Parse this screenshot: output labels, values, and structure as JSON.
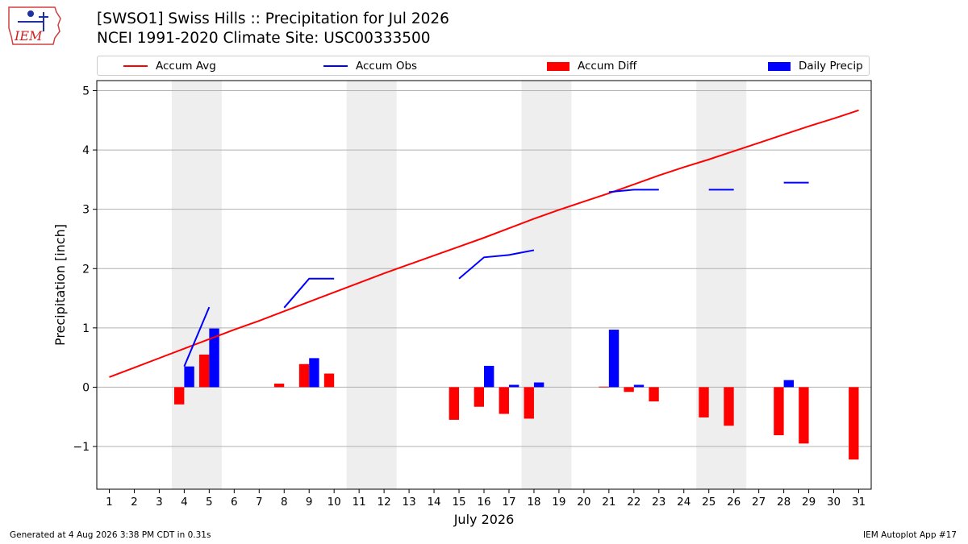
{
  "logo_text": "IEM",
  "title_line1": "[SWSO1] Swiss Hills :: Precipitation for Jul 2026",
  "title_line2": "NCEI 1991-2020 Climate Site: USC00333500",
  "footer_left": "Generated at 4 Aug 2026 3:38 PM CDT in 0.31s",
  "footer_right": "IEM Autoplot App #17",
  "legend": [
    {
      "label": "Accum Avg",
      "kind": "line",
      "color": "#ff0000"
    },
    {
      "label": "Accum Obs",
      "kind": "line",
      "color": "#0000ff"
    },
    {
      "label": "Accum Diff",
      "kind": "box",
      "color": "#ff0000"
    },
    {
      "label": "Daily Precip",
      "kind": "box",
      "color": "#0000ff"
    }
  ],
  "chart_data": {
    "type": "bar",
    "xlabel": "July 2026",
    "ylabel": "Precipitation [inch]",
    "xlim": [
      0.5,
      31.5
    ],
    "ylim": [
      -1.72,
      5.17
    ],
    "yticks": [
      -1,
      0,
      1,
      2,
      3,
      4,
      5
    ],
    "ytick_labels": [
      "−1",
      "0",
      "1",
      "2",
      "3",
      "4",
      "5"
    ],
    "days": [
      1,
      2,
      3,
      4,
      5,
      6,
      7,
      8,
      9,
      10,
      11,
      12,
      13,
      14,
      15,
      16,
      17,
      18,
      19,
      20,
      21,
      22,
      23,
      24,
      25,
      26,
      27,
      28,
      29,
      30,
      31
    ],
    "weekend_shading": [
      [
        4,
        5
      ],
      [
        11,
        12
      ],
      [
        18,
        19
      ],
      [
        25,
        26
      ]
    ],
    "grid": "horizontal",
    "series": [
      {
        "name": "Accum Avg",
        "type": "line",
        "color": "#ff0000",
        "values": [
          0.17,
          0.33,
          0.49,
          0.65,
          0.81,
          0.97,
          1.12,
          1.28,
          1.44,
          1.6,
          1.76,
          1.92,
          2.07,
          2.22,
          2.37,
          2.52,
          2.68,
          2.84,
          2.99,
          3.13,
          3.27,
          3.42,
          3.57,
          3.71,
          3.84,
          3.98,
          4.12,
          4.26,
          4.4,
          4.53,
          4.67
        ]
      },
      {
        "name": "Accum Obs",
        "type": "line",
        "color": "#0000ff",
        "values": [
          null,
          null,
          null,
          0.35,
          1.35,
          null,
          null,
          1.34,
          1.83,
          1.83,
          null,
          null,
          null,
          null,
          1.83,
          2.19,
          2.23,
          2.31,
          null,
          null,
          3.29,
          3.33,
          3.33,
          null,
          3.33,
          3.33,
          null,
          3.45,
          3.45,
          null,
          null
        ]
      },
      {
        "name": "Accum Diff",
        "type": "bar",
        "color": "#ff0000",
        "values": [
          null,
          null,
          null,
          -0.29,
          0.55,
          null,
          null,
          0.06,
          0.39,
          0.23,
          null,
          null,
          null,
          null,
          -0.55,
          -0.33,
          -0.45,
          -0.53,
          null,
          null,
          0.01,
          -0.08,
          -0.24,
          null,
          -0.51,
          -0.65,
          null,
          -0.81,
          -0.95,
          null,
          -1.22
        ]
      },
      {
        "name": "Daily Precip",
        "type": "bar",
        "color": "#0000ff",
        "values": [
          0,
          0,
          0,
          0.35,
          0.99,
          0,
          0,
          0,
          0.49,
          0,
          0,
          0,
          0,
          0,
          0,
          0.36,
          0.04,
          0.08,
          0,
          0,
          0.97,
          0.04,
          0,
          0,
          0,
          0,
          0,
          0.12,
          0,
          0,
          0
        ]
      }
    ]
  }
}
